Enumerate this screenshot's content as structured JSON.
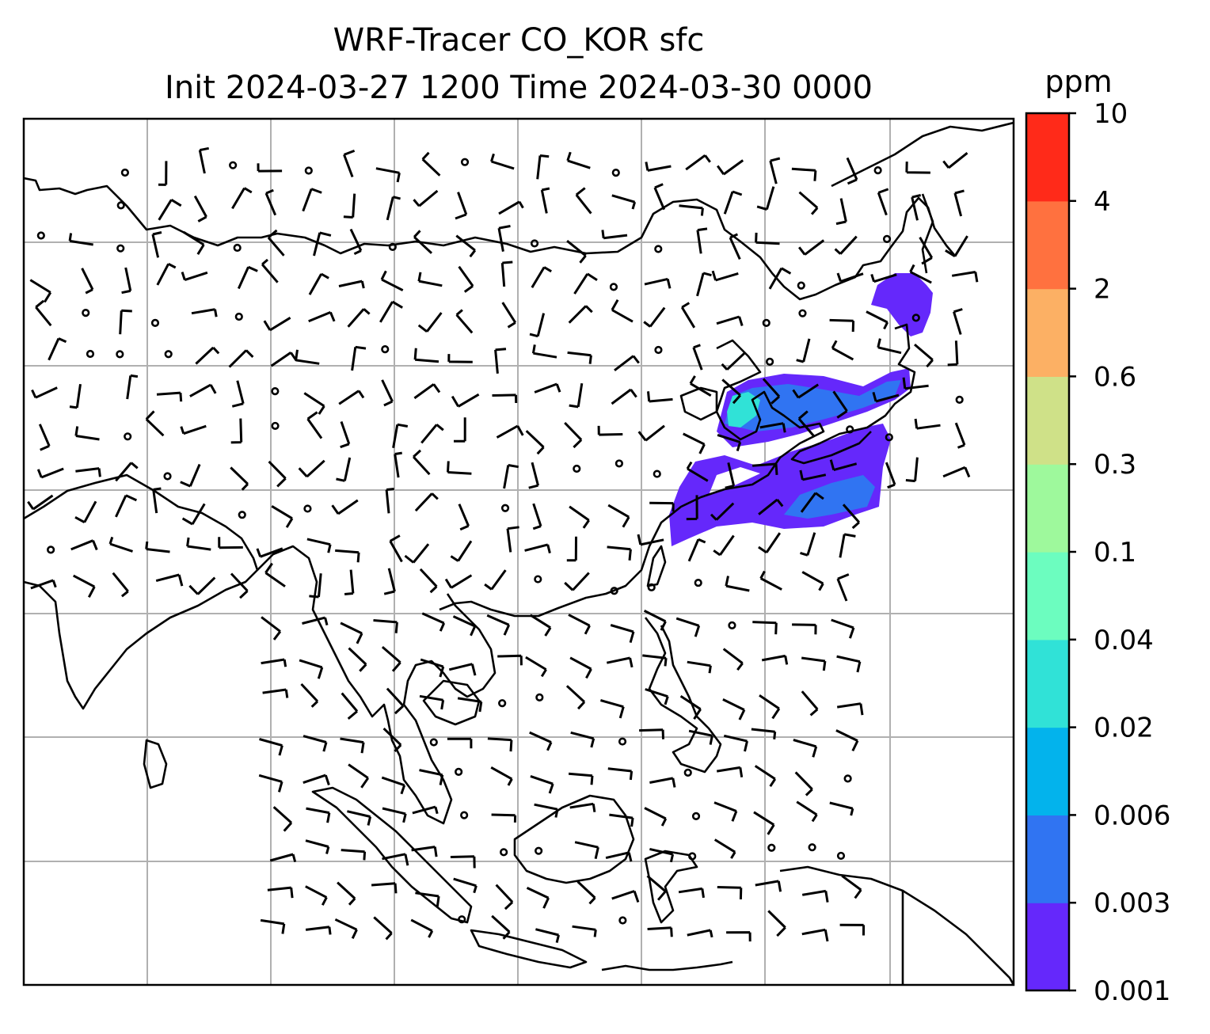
{
  "chart_data": {
    "type": "contour map with wind barbs",
    "title": "WRF-Tracer CO_KOR sfc",
    "subtitle": "Init 2024-03-27 1200 Time 2024-03-30 0000",
    "colorbar": {
      "unit": "ppm",
      "levels": [
        "0.001",
        "0.003",
        "0.006",
        "0.02",
        "0.04",
        "0.1",
        "0.3",
        "0.6",
        "2",
        "4",
        "10"
      ],
      "colors": [
        "#6528fb",
        "#3074f2",
        "#03b3ec",
        "#30e2d7",
        "#6cfdbf",
        "#9ef99c",
        "#cfe188",
        "#fcb064",
        "#ff713f",
        "#ff2a19"
      ]
    },
    "grid": true,
    "grid_color": "#b0b0b0",
    "plume_colors": {
      "outer": "#6528fb",
      "mid": "#3074f2",
      "core": "#30e2d7"
    }
  }
}
